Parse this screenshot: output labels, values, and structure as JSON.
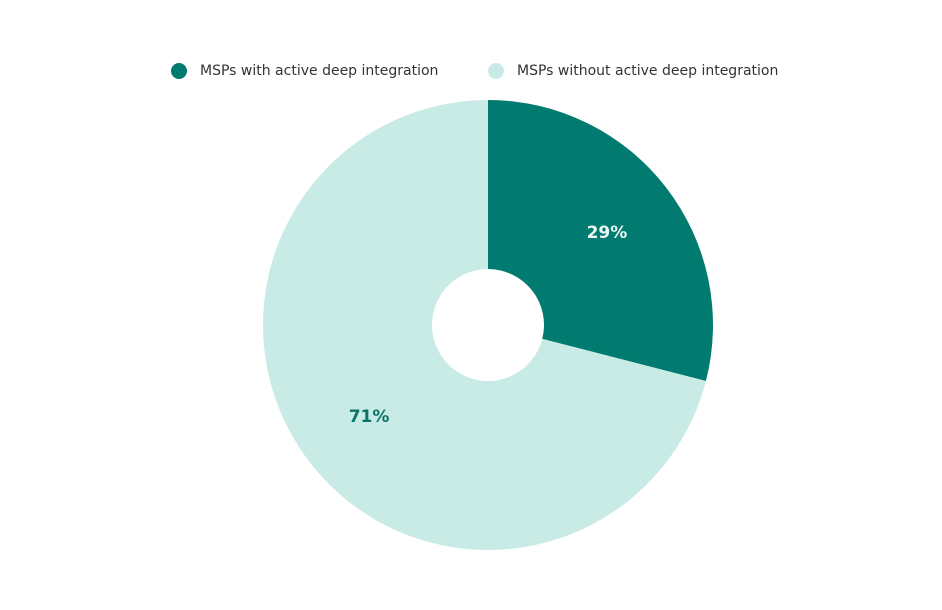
{
  "chart_data": {
    "type": "pie",
    "donut": true,
    "categories": [
      "MSPs with active deep integration",
      "MSPs without active deep integration"
    ],
    "values": [
      29,
      71
    ],
    "data_labels": [
      "29%",
      "71%"
    ],
    "colors": [
      "#017A6F",
      "#C9EBE6"
    ],
    "label_colors": [
      "#E8F6F4",
      "#0A7368"
    ],
    "legend_position": "top",
    "start_angle_deg": 0,
    "direction": "clockwise"
  },
  "legend": {
    "items": [
      {
        "label": "MSPs with active deep integration",
        "color": "#017A6F"
      },
      {
        "label": "MSPs without active deep integration",
        "color": "#C9EBE6"
      }
    ]
  }
}
